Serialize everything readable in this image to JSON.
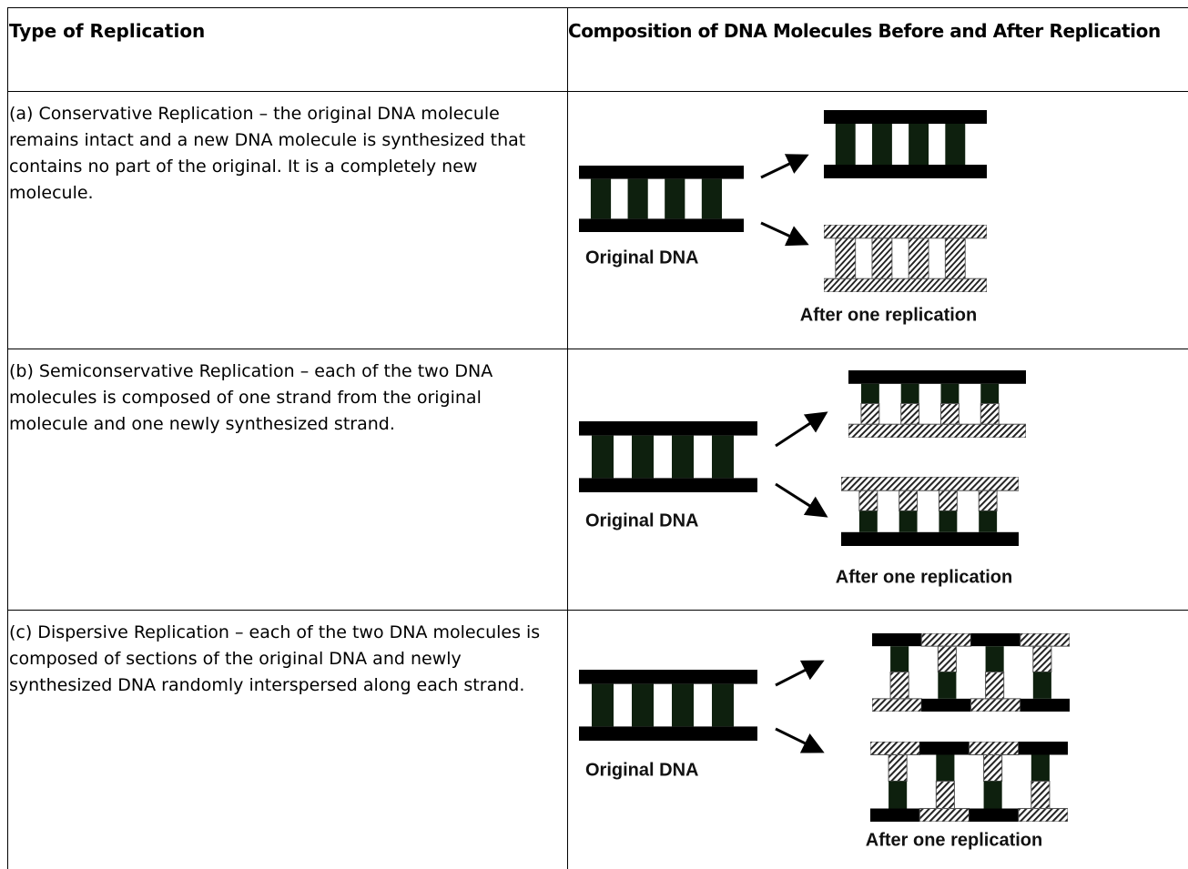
{
  "table": {
    "headers": [
      "Type of Replication",
      "Composition of DNA Molecules Before and After Replication"
    ],
    "rows": [
      {
        "description": "(a) Conservative Replication – the original DNA molecule remains intact and a new DNA molecule is synthesized that contains no part of the original. It is a completely new molecule.",
        "original_label": "Original DNA",
        "result_label": "After one replication"
      },
      {
        "description": "(b) Semiconservative Replication – each of the two DNA molecules is composed of one strand from the original molecule and one newly synthesized strand.",
        "original_label": "Original DNA",
        "result_label": "After one replication"
      },
      {
        "description": "(c) Dispersive Replication – each of the two DNA molecules is composed of sections of the original DNA and newly synthesized DNA randomly interspersed along each strand.",
        "original_label": "Original DNA",
        "result_label": "After one replication"
      }
    ]
  }
}
